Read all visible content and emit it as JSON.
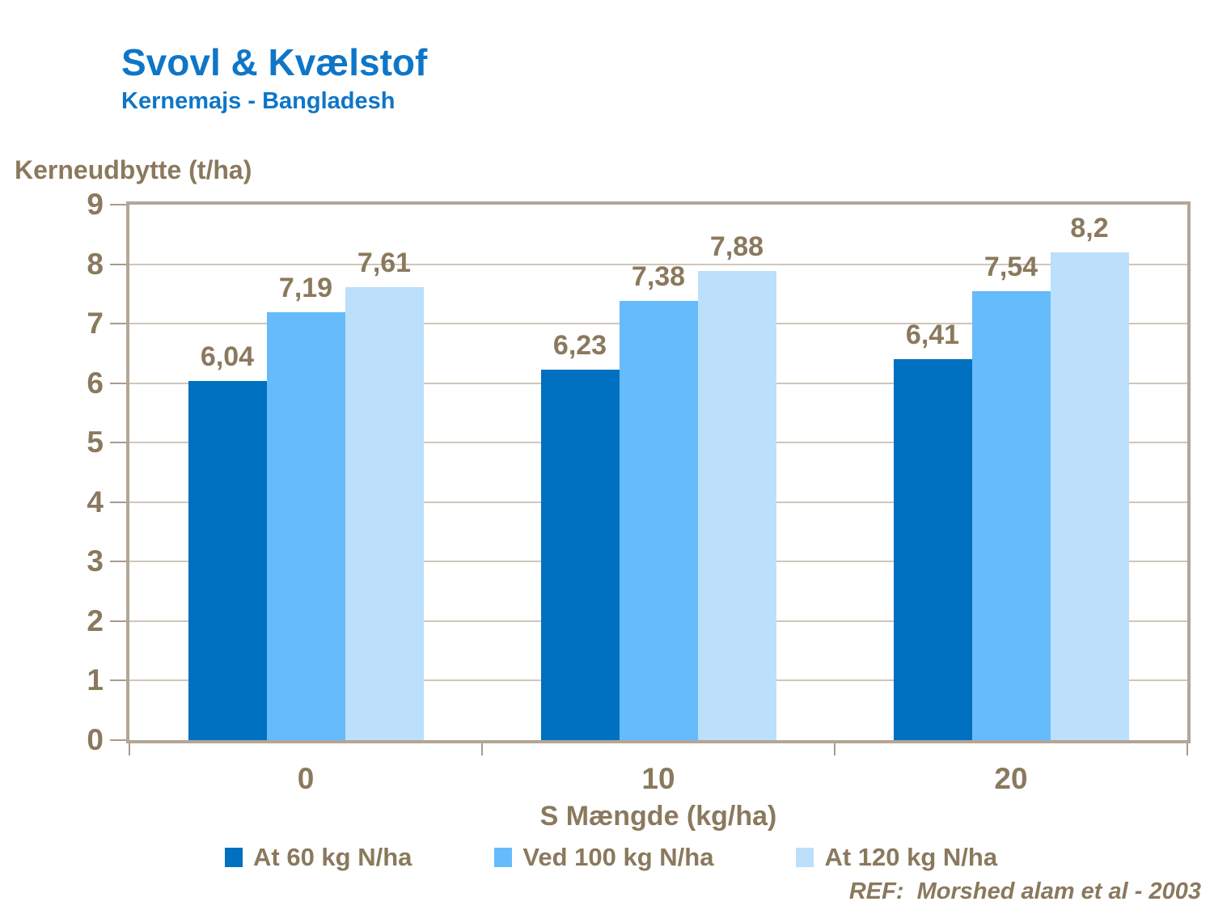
{
  "slide": {
    "title": "Svovl & Kvælstof",
    "subtitle": "Kernemajs - Bangladesh",
    "ref": "REF:  Morshed alam et al - 2003"
  },
  "chart_data": {
    "type": "bar",
    "title": "Svovl & Kvælstof",
    "subtitle": "Kernemajs - Bangladesh",
    "ylabel": "Kerneudbytte (t/ha)",
    "xlabel": "S Mængde (kg/ha)",
    "categories": [
      "0",
      "10",
      "20"
    ],
    "series": [
      {
        "name": "At 60 kg N/ha",
        "color": "#0070c0",
        "values": [
          6.04,
          6.23,
          6.41
        ],
        "labels": [
          "6,04",
          "6,23",
          "6,41"
        ]
      },
      {
        "name": "Ved 100 kg N/ha",
        "color": "#66bbfa",
        "values": [
          7.19,
          7.38,
          7.54
        ],
        "labels": [
          "7,19",
          "7,38",
          "7,54"
        ]
      },
      {
        "name": "At 120 kg N/ha",
        "color": "#bcdffb",
        "values": [
          7.61,
          7.88,
          8.2
        ],
        "labels": [
          "7,61",
          "7,88",
          "8,2"
        ]
      }
    ],
    "ylim": [
      0,
      9
    ],
    "yticks": [
      0,
      1,
      2,
      3,
      4,
      5,
      6,
      7,
      8,
      9
    ],
    "grid": true,
    "legend_position": "bottom",
    "ref": "REF:  Morshed alam et al - 2003",
    "colors": {
      "title_blue": "#0e76c8",
      "text_brown": "#8a795d",
      "frame": "#b3a698",
      "gridline": "#cfc6ba"
    }
  }
}
